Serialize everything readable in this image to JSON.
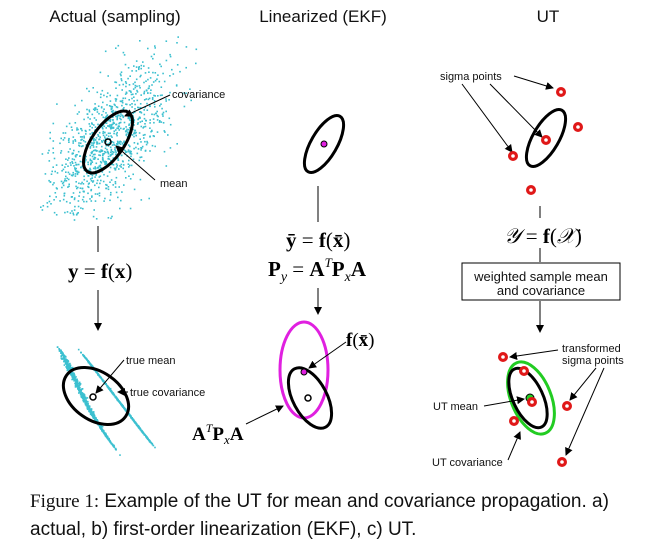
{
  "columns": {
    "actual": {
      "title": "Actual (sampling)"
    },
    "ekf": {
      "title": "Linearized (EKF)"
    },
    "ut": {
      "title": "UT"
    }
  },
  "labels": {
    "covariance": "covariance",
    "mean": "mean",
    "true_mean": "true mean",
    "true_covariance": "true covariance",
    "sigma_points": "sigma points",
    "weighted_box_line1": "weighted sample mean",
    "weighted_box_line2": "and covariance",
    "transformed_line1": "transformed",
    "transformed_line2": "sigma points",
    "ut_mean": "UT mean",
    "ut_covariance": "UT covariance"
  },
  "equations": {
    "actual_map": "y = f(x)",
    "ekf_mean": "ȳ = f(x̄)",
    "ekf_cov": "P_y = A^T P_x A",
    "ekf_fx": "f(x̄)",
    "ekf_atpa": "A^T P_x A",
    "ut_map": "𝒴 = f(𝒳)"
  },
  "caption": {
    "label": "Figure 1:",
    "text": "Example of the UT for mean and covariance propagation. a) actual, b) first-order linearization (EKF), c) UT."
  },
  "colors": {
    "samples": "#3cc0d0",
    "sigma_point": "#e01818",
    "ekf_cov": "#e020e0",
    "ut_cov": "#22cc22",
    "ink": "#000000"
  }
}
